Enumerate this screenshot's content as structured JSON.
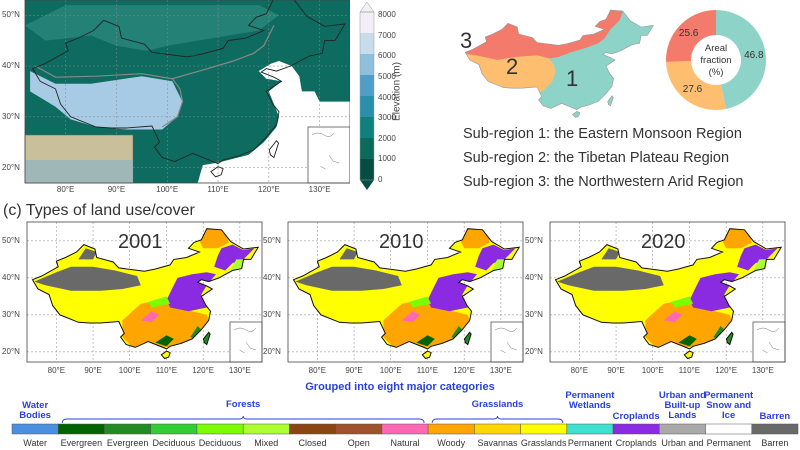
{
  "elevation_map": {
    "lat_labels": [
      "50°N",
      "40°N",
      "30°N",
      "20°N"
    ],
    "lon_labels": [
      "80°E",
      "90°E",
      "100°E",
      "110°E",
      "120°E",
      "130°E"
    ],
    "colorbar": {
      "label": "Elevation (m)",
      "ticks": [
        "8000",
        "7000",
        "6000",
        "5000",
        "4000",
        "3000",
        "2000",
        "1000",
        "0"
      ],
      "colors": [
        "#f3eef6",
        "#c9dcec",
        "#8fbfdd",
        "#4f9ec8",
        "#2a8fa8",
        "#10807c",
        "#0a6b5c",
        "#054d40"
      ]
    }
  },
  "subregions": {
    "map_labels": [
      "1",
      "2",
      "3"
    ],
    "colors": {
      "1": "#8dd3c7",
      "2": "#fdbf6f",
      "3": "#f47a6b"
    },
    "donut": {
      "center_label": [
        "Areal",
        "fraction",
        "(%)"
      ],
      "values": [
        46.8,
        27.6,
        25.6
      ],
      "value_labels": [
        "46.8",
        "27.6",
        "25.6"
      ]
    },
    "descriptions": [
      "Sub-region 1: the Eastern Monsoon Region",
      "Sub-region 2: the Tibetan Plateau Region",
      "Sub-region 3: the Northwestern Arid Region"
    ]
  },
  "land_cover": {
    "title": "(c) Types of land use/cover",
    "years": [
      "2001",
      "2010",
      "2020"
    ],
    "lat_labels": [
      "50°N",
      "40°N",
      "30°N",
      "20°N"
    ],
    "lon_labels": [
      "80°E",
      "90°E",
      "100°E",
      "110°E",
      "120°E",
      "130°E"
    ]
  },
  "legend": {
    "heading": "Grouped into eight major categories",
    "groups": [
      {
        "label": "Water Bodies",
        "span": [
          0,
          0
        ]
      },
      {
        "label": "Forests",
        "span": [
          1,
          8
        ]
      },
      {
        "label": "Grasslands",
        "span": [
          9,
          11
        ]
      },
      {
        "label": "Permanent Wetlands",
        "span": [
          12,
          12
        ]
      },
      {
        "label": "Croplands",
        "span": [
          13,
          13
        ]
      },
      {
        "label": "Urban and Built-up Lands",
        "span": [
          14,
          14
        ]
      },
      {
        "label": "Permanent Snow and Ice",
        "span": [
          15,
          15
        ]
      },
      {
        "label": "Barren",
        "span": [
          16,
          16
        ]
      }
    ],
    "classes": [
      {
        "label": "Water",
        "color": "#4a90e2"
      },
      {
        "label": "Evergreen",
        "color": "#006400"
      },
      {
        "label": "Evergreen",
        "color": "#228b22"
      },
      {
        "label": "Deciduous",
        "color": "#32cd32"
      },
      {
        "label": "Deciduous",
        "color": "#7cfc00"
      },
      {
        "label": "Mixed",
        "color": "#adff2f"
      },
      {
        "label": "Closed",
        "color": "#8b4513"
      },
      {
        "label": "Open",
        "color": "#a0522d"
      },
      {
        "label": "Natural",
        "color": "#ff69b4"
      },
      {
        "label": "Woody",
        "color": "#ffa500"
      },
      {
        "label": "Savannas",
        "color": "#ffd700"
      },
      {
        "label": "Grasslands",
        "color": "#ffff00"
      },
      {
        "label": "Permanent",
        "color": "#40e0d0"
      },
      {
        "label": "Croplands",
        "color": "#8a2be2"
      },
      {
        "label": "Urban and",
        "color": "#a9a9a9"
      },
      {
        "label": "Permanent",
        "color": "#ffffff"
      },
      {
        "label": "Barren",
        "color": "#696969"
      }
    ]
  }
}
